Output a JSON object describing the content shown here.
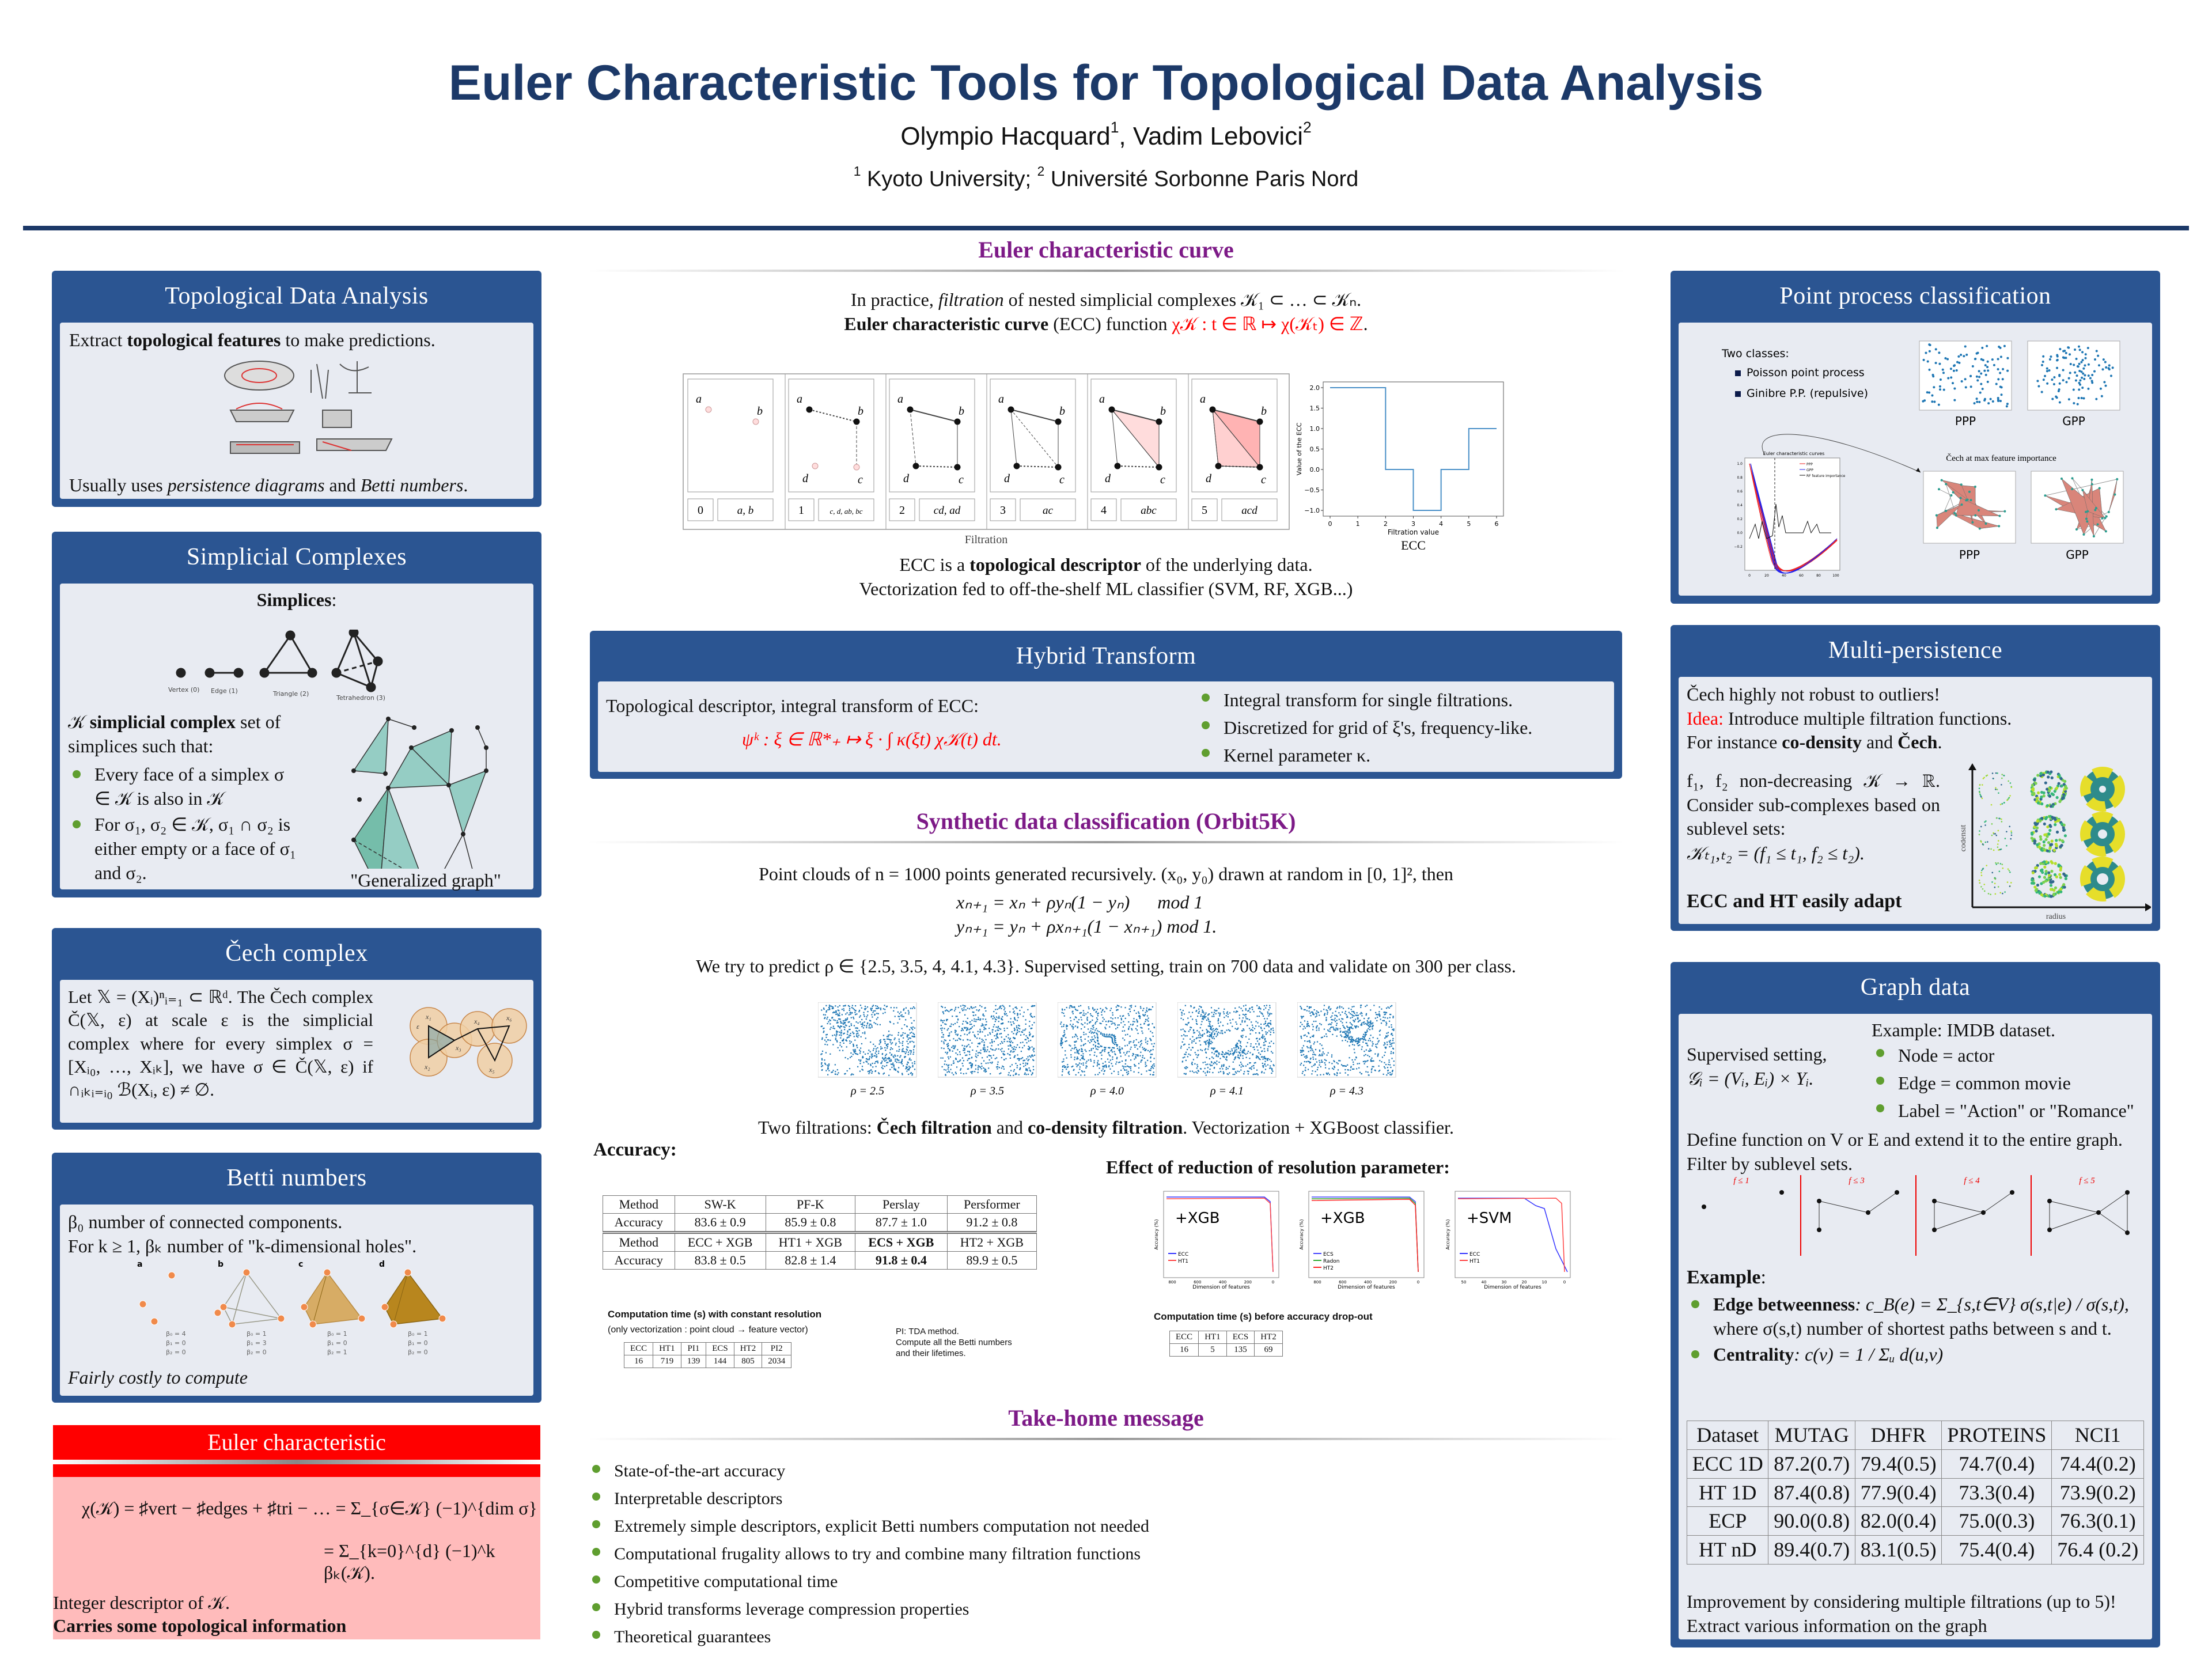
{
  "header": {
    "title": "Euler Characteristic Tools for Topological Data Analysis",
    "author1": "Olympio Hacquard",
    "author1_sup": "1",
    "author_sep": ", ",
    "author2": "Vadim Lebovici",
    "author2_sup": "2",
    "aff_sup1": "1",
    "aff1": " Kyoto University; ",
    "aff_sup2": "2",
    "aff2": " Université Sorbonne Paris Nord"
  },
  "colors": {
    "block_blue": "#2b5592",
    "body_gray": "#e8ebf2",
    "heading_purple": "#7d1a87",
    "bullet_green": "#5f9e2f",
    "accent_red": "#ff0000",
    "title_navy": "#1c3968"
  },
  "tda": {
    "title": "Topological Data Analysis",
    "l1_pre": "Extract ",
    "l1_bold": "topological features",
    "l1_post": " to make predictions.",
    "l2_pre": "Usually uses ",
    "l2_it1": "persistence diagrams",
    "l2_mid": " and ",
    "l2_it2": "Betti numbers",
    "l2_post": "."
  },
  "simplicial": {
    "title": "Simplicial Complexes",
    "simplices_label": "Simplices",
    "colon": ":",
    "vertex": "Vertex (0)",
    "edge": "Edge (1)",
    "triangle": "Triangle (2)",
    "tetra": "Tetrahedron (3)",
    "def_sym": "𝒦 ",
    "def_bold": "simplicial complex",
    "def_post": " set of simplices such that:",
    "b1": "Every face of a simplex σ ∈ 𝒦 is also in 𝒦",
    "b2": "For σ₁, σ₂ ∈ 𝒦, σ₁ ∩ σ₂ is either empty or a face of σ₁ and σ₂.",
    "caption": "\"Generalized graph\""
  },
  "cech": {
    "title": "Čech complex",
    "text": "Let 𝕏 = (Xᵢ)ⁿᵢ₌₁ ⊂ ℝᵈ. The Čech complex Č(𝕏, ε) at scale ε is the simplicial complex where for every simplex σ = [Xᵢ₀, …, Xᵢₖ], we have σ ∈ Č(𝕏, ε) if ∩ᵢₖᵢ₌ᵢ₀ ℬ(Xᵢ, ε) ≠ ∅.",
    "x1": "x₁",
    "x2": "x₂",
    "x3": "x₃",
    "x4": "x₄",
    "x5": "x₅",
    "x6": "x₆",
    "eps": "ε"
  },
  "betti": {
    "title": "Betti numbers",
    "l1": "β₀ number of connected components.",
    "l2": "For k ≥ 1, βₖ number of \"k-dimensional holes\".",
    "panels": [
      {
        "tag": "a",
        "b0": "β₀ = 4",
        "b1": "β₁ = 0",
        "b2": "β₂ = 0"
      },
      {
        "tag": "b",
        "b0": "β₀ = 1",
        "b1": "β₁ = 3",
        "b2": "β₂ = 0"
      },
      {
        "tag": "c",
        "b0": "β₀ = 1",
        "b1": "β₁ = 0",
        "b2": "β₂ = 1"
      },
      {
        "tag": "d",
        "b0": "β₀ = 1",
        "b1": "β₁ = 0",
        "b2": "β₂ = 0"
      }
    ],
    "note": "Fairly costly to compute"
  },
  "euler": {
    "title": "Euler characteristic",
    "f1": "χ(𝒦) = ♯vert − ♯edges + ♯tri − … = Σ_{σ∈𝒦} (−1)^{dim σ}",
    "f2": "= Σ_{k=0}^{d} (−1)^k βₖ(𝒦).",
    "l1": "Integer descriptor of 𝒦.",
    "l2": "Carries some topological information"
  },
  "ecc_section": {
    "heading": "Euler characteristic curve",
    "l1_pre": "In practice, ",
    "l1_it": "filtration",
    "l1_post": " of nested simplicial complexes 𝒦₁ ⊂ … ⊂ 𝒦ₙ.",
    "l2_bold": "Euler characteristic curve",
    "l2_mid": " (ECC) function ",
    "l2_red": "χ𝒦 : t ∈ ℝ ↦ χ(𝒦ₜ) ∈ ℤ",
    "l2_post": ".",
    "filtration_label": "Filtration",
    "ecc_label": "ECC",
    "steps": [
      {
        "t": "0",
        "added": "a, b"
      },
      {
        "t": "1",
        "added": "c, d, ab, bc"
      },
      {
        "t": "2",
        "added": "cd, ad"
      },
      {
        "t": "3",
        "added": "ac"
      },
      {
        "t": "4",
        "added": "abc"
      },
      {
        "t": "5",
        "added": "acd"
      }
    ],
    "vertex_names": [
      "a",
      "b",
      "c",
      "d"
    ],
    "l3_pre": "ECC is a ",
    "l3_bold": "topological descriptor",
    "l3_post": " of the underlying data.",
    "l4": "Vectorization fed to off-the-shelf ML classifier (SVM, RF, XGB...)"
  },
  "chart_data": {
    "type": "line",
    "title": "",
    "xlabel": "Filtration value",
    "ylabel": "Value of the ECC",
    "step": "post",
    "x": [
      0,
      1,
      2,
      3,
      4,
      5,
      6
    ],
    "y": [
      2,
      2,
      0,
      -1,
      0,
      1,
      1
    ],
    "xlim": [
      0,
      6
    ],
    "ylim": [
      -1,
      2
    ],
    "xticks": [
      "0",
      "1",
      "2",
      "3",
      "4",
      "5",
      "6"
    ],
    "yticks": [
      "−1.0",
      "−0.5",
      "0.0",
      "0.5",
      "1.0",
      "1.5",
      "2.0"
    ],
    "ytick_values": [
      -1,
      -0.5,
      0,
      0.5,
      1,
      1.5,
      2
    ],
    "color": "#4a90c8",
    "grid": false
  },
  "hybrid": {
    "title": "Hybrid Transform",
    "intro": "Topological descriptor, integral transform of ECC:",
    "formula": "ψᵏ : ξ ∈ ℝ*₊ ↦ ξ · ∫ κ(ξt) χ𝒦(t) dt.",
    "b1": "Integral transform for single filtrations.",
    "b2": "Discretized for grid of ξ's, frequency-like.",
    "b3": "Kernel parameter κ."
  },
  "synthetic": {
    "heading": "Synthetic data classification (Orbit5K)",
    "l1": "Point clouds of n = 1000 points generated recursively. (x₀, y₀) drawn at random in [0, 1]², then",
    "eq1": "xₙ₊₁ = xₙ + ρyₙ(1 − yₙ)      mod 1",
    "eq2": "yₙ₊₁ = yₙ + ρxₙ₊₁(1 − xₙ₊₁) mod 1.",
    "l2": "We try to predict ρ ∈ {2.5, 3.5, 4, 4.1, 4.3}. Supervised setting, train on 700 data and validate on 300 per class.",
    "rho_labels": [
      "ρ = 2.5",
      "ρ = 3.5",
      "ρ = 4.0",
      "ρ = 4.1",
      "ρ = 4.3"
    ],
    "l3_pre": "Two filtrations: ",
    "l3_b1": "Čech filtration",
    "l3_mid": " and ",
    "l3_b2": "co-density filtration",
    "l3_post": ". Vectorization + XGBoost classifier.",
    "accuracy_label": "Accuracy:",
    "acc_table": [
      [
        "Method",
        "SW-K",
        "PF-K",
        "Perslay",
        "Persformer"
      ],
      [
        "Accuracy",
        "83.6 ± 0.9",
        "85.9 ± 0.8",
        "87.7 ± 1.0",
        "91.2 ± 0.8"
      ],
      [
        "Method",
        "ECC + XGB",
        "HT1 + XGB",
        "ECS + XGB",
        "HT2 + XGB"
      ],
      [
        "Accuracy",
        "83.8 ± 0.5",
        "82.8 ± 1.4",
        "91.8 ± 0.4",
        "89.9 ± 0.5"
      ]
    ],
    "comp1_title": "Computation time (s) with constant resolution",
    "comp1_sub": "(only vectorization : point cloud → feature vector)",
    "comp1_table": [
      [
        "ECC",
        "HT1",
        "PI1",
        "ECS",
        "HT2",
        "PI2"
      ],
      [
        "16",
        "719",
        "139",
        "144",
        "805",
        "2034"
      ]
    ],
    "pi_note1": "PI: TDA method.",
    "pi_note2": "Compute all the Betti numbers",
    "pi_note3": "and their lifetimes.",
    "effect_label": "Effect of reduction of resolution parameter:",
    "plots": [
      {
        "tag": "+XGB",
        "legend": [
          "ECC",
          "HT1"
        ],
        "xticks": [
          "800",
          "600",
          "400",
          "200",
          "0"
        ]
      },
      {
        "tag": "+XGB",
        "legend": [
          "ECS",
          "Radon",
          "HT2"
        ],
        "xticks": [
          "800",
          "600",
          "400",
          "200",
          "0"
        ]
      },
      {
        "tag": "+SVM",
        "legend": [
          "ECC",
          "HT1"
        ],
        "xticks": [
          "50",
          "40",
          "30",
          "20",
          "10",
          "0"
        ]
      }
    ],
    "plot_xlabel": "Dimension of features",
    "plot_ylabel": "Accuracy (%)",
    "comp2_title": "Computation time (s) before accuracy drop-out",
    "comp2_table": [
      [
        "ECC",
        "HT1",
        "ECS",
        "HT2"
      ],
      [
        "16",
        "5",
        "135",
        "69"
      ]
    ]
  },
  "takehome": {
    "heading": "Take-home message",
    "items": [
      "State-of-the-art accuracy",
      "Interpretable descriptors",
      "Extremely simple descriptors, explicit Betti numbers computation not needed",
      "Computational frugality allows to try and combine many filtration functions",
      "Competitive computational time",
      "Hybrid transforms leverage compression properties",
      "Theoretical guarantees"
    ]
  },
  "pointprocess": {
    "title": "Point process classification",
    "classes_label": "Two classes:",
    "class1": "Poisson point process",
    "class2": "Ginibre P.P. (repulsive)",
    "ppp": "PPP",
    "gpp": "GPP",
    "cech_caption": "Čech at max feature importance",
    "curve_title": "Euler characteristic curves",
    "legend": [
      "PPP",
      "GPP",
      "RF feature importance"
    ],
    "yticks": [
      "1.0",
      "0.8",
      "0.6",
      "0.4",
      "0.2",
      "0.0",
      "−0.2"
    ],
    "xticks": [
      "0",
      "20",
      "40",
      "60",
      "80",
      "100"
    ]
  },
  "multi": {
    "title": "Multi-persistence",
    "l1": "Čech highly not robust to outliers!",
    "idea": "Idea:",
    "l2": " Introduce multiple filtration functions.",
    "l3_pre": "For instance ",
    "l3_b1": "co-density",
    "l3_mid": " and ",
    "l3_b2": "Čech",
    "l3_post": ".",
    "l4": "f₁, f₂ non-decreasing 𝒦 → ℝ. Consider sub-complexes based on sublevel sets:",
    "l5": "𝒦ₜ₁,ₜ₂ = (f₁ ≤ t₁, f₂ ≤ t₂).",
    "l6": "ECC and HT easily adapt",
    "yaxis": "codensit",
    "xaxis": "radius"
  },
  "graph": {
    "title": "Graph data",
    "example_ds": "Example: IMDB dataset.",
    "sup1": "Supervised setting,",
    "sup2": "𝒢ᵢ = (Vᵢ, Eᵢ) × Yᵢ.",
    "b1": "Node = actor",
    "b2": "Edge = common movie",
    "b3": "Label = \"Action\" or \"Romance\"",
    "d1": "Define function on V or E and extend it to the entire graph.",
    "d2": "Filter by sublevel sets.",
    "panels": [
      "f ≤ 1",
      "f ≤ 3",
      "f ≤ 4",
      "f ≤ 5"
    ],
    "example": "Example",
    "colon": ":",
    "eb_bold": "Edge betweenness",
    "eb_formula": ": c_B(e) = Σ_{s,t∈V} σ(s,t|e) / σ(s,t),",
    "eb_note": "where σ(s,t) number of shortest paths between s and t.",
    "cen_bold": "Centrality",
    "cen_formula": ": c(v) = 1 / Σᵤ d(u,v)",
    "table": [
      [
        "Dataset",
        "MUTAG",
        "DHFR",
        "PROTEINS",
        "NCI1"
      ],
      [
        "ECC 1D",
        "87.2(0.7)",
        "79.4(0.5)",
        "74.7(0.4)",
        "74.4(0.2)"
      ],
      [
        "HT 1D",
        "87.4(0.8)",
        "77.9(0.4)",
        "73.3(0.4)",
        "73.9(0.2)"
      ],
      [
        "ECP",
        "90.0(0.8)",
        "82.0(0.4)",
        "75.0(0.3)",
        "76.3(0.1)"
      ],
      [
        "HT nD",
        "89.4(0.7)",
        "83.1(0.5)",
        "75.4(0.4)",
        "76.4 (0.2)"
      ]
    ],
    "f1": "Improvement by considering multiple filtrations (up to 5)!",
    "f2": "Extract various information on the graph"
  }
}
